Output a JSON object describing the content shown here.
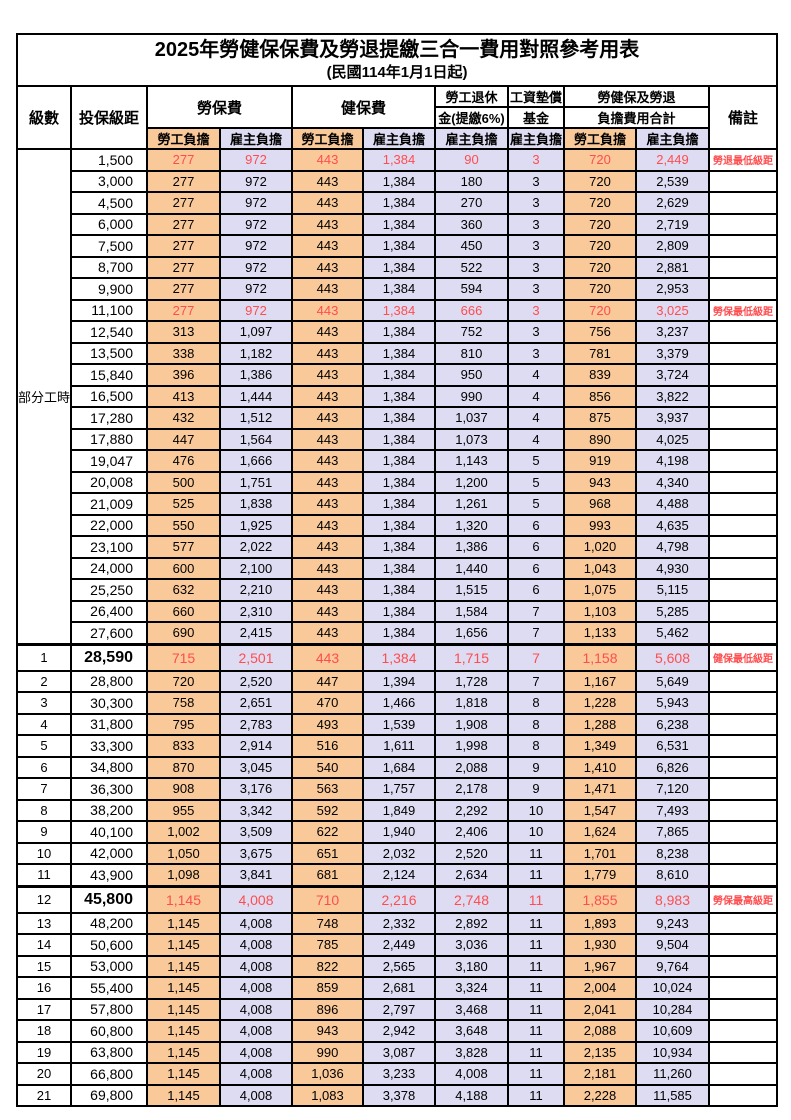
{
  "title": "2025年勞健保保費及勞退提繳三合一費用對照參考用表",
  "subtitle": "(民國114年1月1日起)",
  "colors": {
    "employee_bg": "#FAC999",
    "employer_bg": "#DEDCF2",
    "red_text": "#FF4D4F",
    "grid": "#000000"
  },
  "columns": {
    "level": "級數",
    "bracket": "投保級距",
    "labor": "勞保費",
    "health": "健保費",
    "pension_line1": "勞工退休",
    "pension_line2": "金(提繳6%)",
    "fund_line1": "工資墊償",
    "fund_line2": "基金",
    "total_line1": "勞健保及勞退",
    "total_line2": "負擔費用合計",
    "remark": "備註",
    "employee": "勞工負擔",
    "employer": "雇主負擔"
  },
  "part_time_label": "部分工時",
  "part_time_rowspan": 23,
  "rows": [
    {
      "level": "",
      "bracket": "1,500",
      "labor_emp": "277",
      "labor_er": "972",
      "health_emp": "443",
      "health_er": "1,384",
      "pension_er": "90",
      "fund_er": "3",
      "total_emp": "720",
      "total_er": "2,449",
      "remark": "勞退最低級距",
      "red": true,
      "em": false
    },
    {
      "level": "",
      "bracket": "3,000",
      "labor_emp": "277",
      "labor_er": "972",
      "health_emp": "443",
      "health_er": "1,384",
      "pension_er": "180",
      "fund_er": "3",
      "total_emp": "720",
      "total_er": "2,539",
      "remark": "",
      "red": false,
      "em": false
    },
    {
      "level": "",
      "bracket": "4,500",
      "labor_emp": "277",
      "labor_er": "972",
      "health_emp": "443",
      "health_er": "1,384",
      "pension_er": "270",
      "fund_er": "3",
      "total_emp": "720",
      "total_er": "2,629",
      "remark": "",
      "red": false,
      "em": false
    },
    {
      "level": "",
      "bracket": "6,000",
      "labor_emp": "277",
      "labor_er": "972",
      "health_emp": "443",
      "health_er": "1,384",
      "pension_er": "360",
      "fund_er": "3",
      "total_emp": "720",
      "total_er": "2,719",
      "remark": "",
      "red": false,
      "em": false
    },
    {
      "level": "",
      "bracket": "7,500",
      "labor_emp": "277",
      "labor_er": "972",
      "health_emp": "443",
      "health_er": "1,384",
      "pension_er": "450",
      "fund_er": "3",
      "total_emp": "720",
      "total_er": "2,809",
      "remark": "",
      "red": false,
      "em": false
    },
    {
      "level": "",
      "bracket": "8,700",
      "labor_emp": "277",
      "labor_er": "972",
      "health_emp": "443",
      "health_er": "1,384",
      "pension_er": "522",
      "fund_er": "3",
      "total_emp": "720",
      "total_er": "2,881",
      "remark": "",
      "red": false,
      "em": false
    },
    {
      "level": "",
      "bracket": "9,900",
      "labor_emp": "277",
      "labor_er": "972",
      "health_emp": "443",
      "health_er": "1,384",
      "pension_er": "594",
      "fund_er": "3",
      "total_emp": "720",
      "total_er": "2,953",
      "remark": "",
      "red": false,
      "em": false
    },
    {
      "level": "",
      "bracket": "11,100",
      "labor_emp": "277",
      "labor_er": "972",
      "health_emp": "443",
      "health_er": "1,384",
      "pension_er": "666",
      "fund_er": "3",
      "total_emp": "720",
      "total_er": "3,025",
      "remark": "勞保最低級距",
      "red": true,
      "em": false
    },
    {
      "level": "",
      "bracket": "12,540",
      "labor_emp": "313",
      "labor_er": "1,097",
      "health_emp": "443",
      "health_er": "1,384",
      "pension_er": "752",
      "fund_er": "3",
      "total_emp": "756",
      "total_er": "3,237",
      "remark": "",
      "red": false,
      "em": false
    },
    {
      "level": "",
      "bracket": "13,500",
      "labor_emp": "338",
      "labor_er": "1,182",
      "health_emp": "443",
      "health_er": "1,384",
      "pension_er": "810",
      "fund_er": "3",
      "total_emp": "781",
      "total_er": "3,379",
      "remark": "",
      "red": false,
      "em": false
    },
    {
      "level": "",
      "bracket": "15,840",
      "labor_emp": "396",
      "labor_er": "1,386",
      "health_emp": "443",
      "health_er": "1,384",
      "pension_er": "950",
      "fund_er": "4",
      "total_emp": "839",
      "total_er": "3,724",
      "remark": "",
      "red": false,
      "em": false
    },
    {
      "level": "",
      "bracket": "16,500",
      "labor_emp": "413",
      "labor_er": "1,444",
      "health_emp": "443",
      "health_er": "1,384",
      "pension_er": "990",
      "fund_er": "4",
      "total_emp": "856",
      "total_er": "3,822",
      "remark": "",
      "red": false,
      "em": false
    },
    {
      "level": "",
      "bracket": "17,280",
      "labor_emp": "432",
      "labor_er": "1,512",
      "health_emp": "443",
      "health_er": "1,384",
      "pension_er": "1,037",
      "fund_er": "4",
      "total_emp": "875",
      "total_er": "3,937",
      "remark": "",
      "red": false,
      "em": false
    },
    {
      "level": "",
      "bracket": "17,880",
      "labor_emp": "447",
      "labor_er": "1,564",
      "health_emp": "443",
      "health_er": "1,384",
      "pension_er": "1,073",
      "fund_er": "4",
      "total_emp": "890",
      "total_er": "4,025",
      "remark": "",
      "red": false,
      "em": false
    },
    {
      "level": "",
      "bracket": "19,047",
      "labor_emp": "476",
      "labor_er": "1,666",
      "health_emp": "443",
      "health_er": "1,384",
      "pension_er": "1,143",
      "fund_er": "5",
      "total_emp": "919",
      "total_er": "4,198",
      "remark": "",
      "red": false,
      "em": false
    },
    {
      "level": "",
      "bracket": "20,008",
      "labor_emp": "500",
      "labor_er": "1,751",
      "health_emp": "443",
      "health_er": "1,384",
      "pension_er": "1,200",
      "fund_er": "5",
      "total_emp": "943",
      "total_er": "4,340",
      "remark": "",
      "red": false,
      "em": false
    },
    {
      "level": "",
      "bracket": "21,009",
      "labor_emp": "525",
      "labor_er": "1,838",
      "health_emp": "443",
      "health_er": "1,384",
      "pension_er": "1,261",
      "fund_er": "5",
      "total_emp": "968",
      "total_er": "4,488",
      "remark": "",
      "red": false,
      "em": false
    },
    {
      "level": "",
      "bracket": "22,000",
      "labor_emp": "550",
      "labor_er": "1,925",
      "health_emp": "443",
      "health_er": "1,384",
      "pension_er": "1,320",
      "fund_er": "6",
      "total_emp": "993",
      "total_er": "4,635",
      "remark": "",
      "red": false,
      "em": false
    },
    {
      "level": "",
      "bracket": "23,100",
      "labor_emp": "577",
      "labor_er": "2,022",
      "health_emp": "443",
      "health_er": "1,384",
      "pension_er": "1,386",
      "fund_er": "6",
      "total_emp": "1,020",
      "total_er": "4,798",
      "remark": "",
      "red": false,
      "em": false
    },
    {
      "level": "",
      "bracket": "24,000",
      "labor_emp": "600",
      "labor_er": "2,100",
      "health_emp": "443",
      "health_er": "1,384",
      "pension_er": "1,440",
      "fund_er": "6",
      "total_emp": "1,043",
      "total_er": "4,930",
      "remark": "",
      "red": false,
      "em": false
    },
    {
      "level": "",
      "bracket": "25,250",
      "labor_emp": "632",
      "labor_er": "2,210",
      "health_emp": "443",
      "health_er": "1,384",
      "pension_er": "1,515",
      "fund_er": "6",
      "total_emp": "1,075",
      "total_er": "5,115",
      "remark": "",
      "red": false,
      "em": false
    },
    {
      "level": "",
      "bracket": "26,400",
      "labor_emp": "660",
      "labor_er": "2,310",
      "health_emp": "443",
      "health_er": "1,384",
      "pension_er": "1,584",
      "fund_er": "7",
      "total_emp": "1,103",
      "total_er": "5,285",
      "remark": "",
      "red": false,
      "em": false
    },
    {
      "level": "",
      "bracket": "27,600",
      "labor_emp": "690",
      "labor_er": "2,415",
      "health_emp": "443",
      "health_er": "1,384",
      "pension_er": "1,656",
      "fund_er": "7",
      "total_emp": "1,133",
      "total_er": "5,462",
      "remark": "",
      "red": false,
      "em": false
    },
    {
      "level": "1",
      "bracket": "28,590",
      "labor_emp": "715",
      "labor_er": "2,501",
      "health_emp": "443",
      "health_er": "1,384",
      "pension_er": "1,715",
      "fund_er": "7",
      "total_emp": "1,158",
      "total_er": "5,608",
      "remark": "健保最低級距",
      "red": true,
      "em": true
    },
    {
      "level": "2",
      "bracket": "28,800",
      "labor_emp": "720",
      "labor_er": "2,520",
      "health_emp": "447",
      "health_er": "1,394",
      "pension_er": "1,728",
      "fund_er": "7",
      "total_emp": "1,167",
      "total_er": "5,649",
      "remark": "",
      "red": false,
      "em": false
    },
    {
      "level": "3",
      "bracket": "30,300",
      "labor_emp": "758",
      "labor_er": "2,651",
      "health_emp": "470",
      "health_er": "1,466",
      "pension_er": "1,818",
      "fund_er": "8",
      "total_emp": "1,228",
      "total_er": "5,943",
      "remark": "",
      "red": false,
      "em": false
    },
    {
      "level": "4",
      "bracket": "31,800",
      "labor_emp": "795",
      "labor_er": "2,783",
      "health_emp": "493",
      "health_er": "1,539",
      "pension_er": "1,908",
      "fund_er": "8",
      "total_emp": "1,288",
      "total_er": "6,238",
      "remark": "",
      "red": false,
      "em": false
    },
    {
      "level": "5",
      "bracket": "33,300",
      "labor_emp": "833",
      "labor_er": "2,914",
      "health_emp": "516",
      "health_er": "1,611",
      "pension_er": "1,998",
      "fund_er": "8",
      "total_emp": "1,349",
      "total_er": "6,531",
      "remark": "",
      "red": false,
      "em": false
    },
    {
      "level": "6",
      "bracket": "34,800",
      "labor_emp": "870",
      "labor_er": "3,045",
      "health_emp": "540",
      "health_er": "1,684",
      "pension_er": "2,088",
      "fund_er": "9",
      "total_emp": "1,410",
      "total_er": "6,826",
      "remark": "",
      "red": false,
      "em": false
    },
    {
      "level": "7",
      "bracket": "36,300",
      "labor_emp": "908",
      "labor_er": "3,176",
      "health_emp": "563",
      "health_er": "1,757",
      "pension_er": "2,178",
      "fund_er": "9",
      "total_emp": "1,471",
      "total_er": "7,120",
      "remark": "",
      "red": false,
      "em": false
    },
    {
      "level": "8",
      "bracket": "38,200",
      "labor_emp": "955",
      "labor_er": "3,342",
      "health_emp": "592",
      "health_er": "1,849",
      "pension_er": "2,292",
      "fund_er": "10",
      "total_emp": "1,547",
      "total_er": "7,493",
      "remark": "",
      "red": false,
      "em": false
    },
    {
      "level": "9",
      "bracket": "40,100",
      "labor_emp": "1,002",
      "labor_er": "3,509",
      "health_emp": "622",
      "health_er": "1,940",
      "pension_er": "2,406",
      "fund_er": "10",
      "total_emp": "1,624",
      "total_er": "7,865",
      "remark": "",
      "red": false,
      "em": false
    },
    {
      "level": "10",
      "bracket": "42,000",
      "labor_emp": "1,050",
      "labor_er": "3,675",
      "health_emp": "651",
      "health_er": "2,032",
      "pension_er": "2,520",
      "fund_er": "11",
      "total_emp": "1,701",
      "total_er": "8,238",
      "remark": "",
      "red": false,
      "em": false
    },
    {
      "level": "11",
      "bracket": "43,900",
      "labor_emp": "1,098",
      "labor_er": "3,841",
      "health_emp": "681",
      "health_er": "2,124",
      "pension_er": "2,634",
      "fund_er": "11",
      "total_emp": "1,779",
      "total_er": "8,610",
      "remark": "",
      "red": false,
      "em": false
    },
    {
      "level": "12",
      "bracket": "45,800",
      "labor_emp": "1,145",
      "labor_er": "4,008",
      "health_emp": "710",
      "health_er": "2,216",
      "pension_er": "2,748",
      "fund_er": "11",
      "total_emp": "1,855",
      "total_er": "8,983",
      "remark": "勞保最高級距",
      "red": true,
      "em": true
    },
    {
      "level": "13",
      "bracket": "48,200",
      "labor_emp": "1,145",
      "labor_er": "4,008",
      "health_emp": "748",
      "health_er": "2,332",
      "pension_er": "2,892",
      "fund_er": "11",
      "total_emp": "1,893",
      "total_er": "9,243",
      "remark": "",
      "red": false,
      "em": false
    },
    {
      "level": "14",
      "bracket": "50,600",
      "labor_emp": "1,145",
      "labor_er": "4,008",
      "health_emp": "785",
      "health_er": "2,449",
      "pension_er": "3,036",
      "fund_er": "11",
      "total_emp": "1,930",
      "total_er": "9,504",
      "remark": "",
      "red": false,
      "em": false
    },
    {
      "level": "15",
      "bracket": "53,000",
      "labor_emp": "1,145",
      "labor_er": "4,008",
      "health_emp": "822",
      "health_er": "2,565",
      "pension_er": "3,180",
      "fund_er": "11",
      "total_emp": "1,967",
      "total_er": "9,764",
      "remark": "",
      "red": false,
      "em": false
    },
    {
      "level": "16",
      "bracket": "55,400",
      "labor_emp": "1,145",
      "labor_er": "4,008",
      "health_emp": "859",
      "health_er": "2,681",
      "pension_er": "3,324",
      "fund_er": "11",
      "total_emp": "2,004",
      "total_er": "10,024",
      "remark": "",
      "red": false,
      "em": false
    },
    {
      "level": "17",
      "bracket": "57,800",
      "labor_emp": "1,145",
      "labor_er": "4,008",
      "health_emp": "896",
      "health_er": "2,797",
      "pension_er": "3,468",
      "fund_er": "11",
      "total_emp": "2,041",
      "total_er": "10,284",
      "remark": "",
      "red": false,
      "em": false
    },
    {
      "level": "18",
      "bracket": "60,800",
      "labor_emp": "1,145",
      "labor_er": "4,008",
      "health_emp": "943",
      "health_er": "2,942",
      "pension_er": "3,648",
      "fund_er": "11",
      "total_emp": "2,088",
      "total_er": "10,609",
      "remark": "",
      "red": false,
      "em": false
    },
    {
      "level": "19",
      "bracket": "63,800",
      "labor_emp": "1,145",
      "labor_er": "4,008",
      "health_emp": "990",
      "health_er": "3,087",
      "pension_er": "3,828",
      "fund_er": "11",
      "total_emp": "2,135",
      "total_er": "10,934",
      "remark": "",
      "red": false,
      "em": false
    },
    {
      "level": "20",
      "bracket": "66,800",
      "labor_emp": "1,145",
      "labor_er": "4,008",
      "health_emp": "1,036",
      "health_er": "3,233",
      "pension_er": "4,008",
      "fund_er": "11",
      "total_emp": "2,181",
      "total_er": "11,260",
      "remark": "",
      "red": false,
      "em": false
    },
    {
      "level": "21",
      "bracket": "69,800",
      "labor_emp": "1,145",
      "labor_er": "4,008",
      "health_emp": "1,083",
      "health_er": "3,378",
      "pension_er": "4,188",
      "fund_er": "11",
      "total_emp": "2,228",
      "total_er": "11,585",
      "remark": "",
      "red": false,
      "em": false
    }
  ]
}
